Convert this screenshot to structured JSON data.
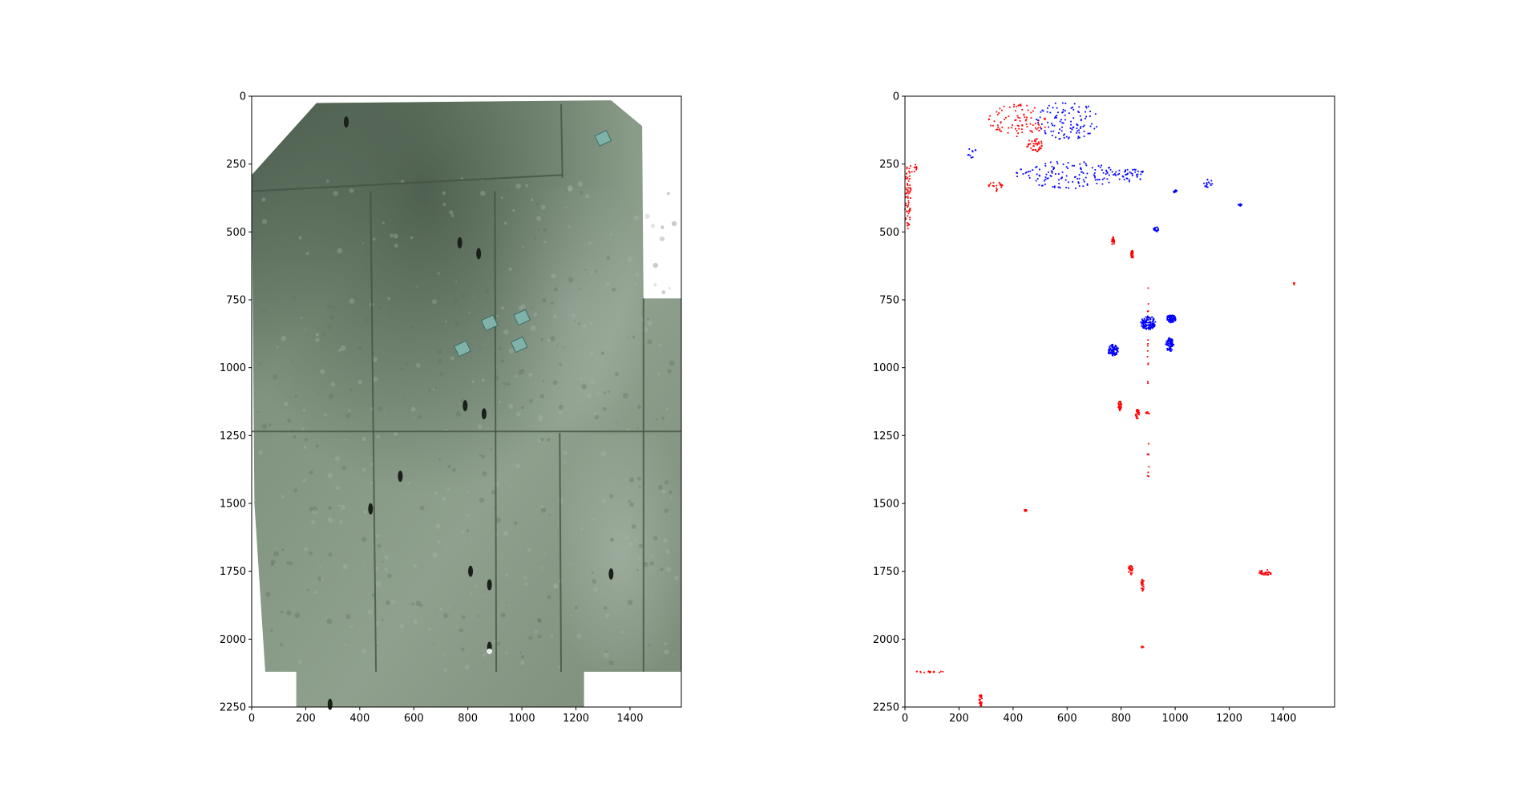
{
  "figure": {
    "background": "#ffffff",
    "panel_count": 2
  },
  "chart_data": [
    {
      "type": "heatmap",
      "content": "photograph-of-concrete-wall-panels",
      "title": "",
      "xlabel": "",
      "ylabel": "",
      "xlim": [
        0,
        1590
      ],
      "ylim": [
        2250,
        0
      ],
      "x_ticks": [
        "0",
        "200",
        "400",
        "600",
        "800",
        "1000",
        "1200",
        "1400"
      ],
      "x_tick_values": [
        0,
        200,
        400,
        600,
        800,
        1000,
        1200,
        1400
      ],
      "y_ticks": [
        "0",
        "250",
        "500",
        "750",
        "1000",
        "1250",
        "1500",
        "1750",
        "2000",
        "2250"
      ],
      "y_tick_values": [
        0,
        250,
        500,
        750,
        1000,
        1250,
        1500,
        1750,
        2000,
        2250
      ],
      "grid": false,
      "image_outline": [
        [
          240,
          25
        ],
        [
          1330,
          15
        ],
        [
          1445,
          110
        ],
        [
          1450,
          745
        ],
        [
          1590,
          745
        ],
        [
          1590,
          2120
        ],
        [
          1230,
          2120
        ],
        [
          1230,
          2250
        ],
        [
          165,
          2250
        ],
        [
          165,
          2120
        ],
        [
          50,
          2120
        ],
        [
          10,
          1500
        ],
        [
          0,
          290
        ]
      ],
      "image_colors": {
        "base": "#8a9c89",
        "dark": "#4d5e4f",
        "light": "#a7b6a7"
      },
      "panel_joints": {
        "horizontal": [
          [
            0,
            1235,
            1590,
            1235
          ],
          [
            0,
            350,
            1150,
            290
          ]
        ],
        "vertical": [
          [
            440,
            350,
            460,
            2120
          ],
          [
            900,
            350,
            905,
            2120
          ],
          [
            1140,
            1240,
            1145,
            2120
          ],
          [
            1145,
            30,
            1150,
            300
          ],
          [
            1450,
            745,
            1450,
            2120
          ]
        ]
      },
      "dark_spots": [
        [
          770,
          540
        ],
        [
          840,
          580
        ],
        [
          790,
          1140
        ],
        [
          860,
          1170
        ],
        [
          810,
          1750
        ],
        [
          880,
          1800
        ],
        [
          1330,
          1760
        ],
        [
          440,
          1520
        ],
        [
          290,
          2240
        ],
        [
          880,
          2030
        ],
        [
          550,
          1400
        ],
        [
          350,
          95
        ]
      ],
      "tags": [
        [
          880,
          835
        ],
        [
          1000,
          815
        ],
        [
          990,
          915
        ],
        [
          780,
          930
        ],
        [
          1300,
          155
        ]
      ]
    },
    {
      "type": "scatter",
      "content": "defect-classification-map",
      "title": "",
      "xlabel": "",
      "ylabel": "",
      "xlim": [
        0,
        1590
      ],
      "ylim": [
        2250,
        0
      ],
      "x_ticks": [
        "0",
        "200",
        "400",
        "600",
        "800",
        "1000",
        "1200",
        "1400"
      ],
      "x_tick_values": [
        0,
        200,
        400,
        600,
        800,
        1000,
        1200,
        1400
      ],
      "y_ticks": [
        "0",
        "250",
        "500",
        "750",
        "1000",
        "1250",
        "1500",
        "1750",
        "2000",
        "2250"
      ],
      "y_tick_values": [
        0,
        250,
        500,
        750,
        1000,
        1250,
        1500,
        1750,
        2000,
        2250
      ],
      "grid": false,
      "series": [
        {
          "color": "#ff0000",
          "clusters": [
            {
              "x": 420,
              "y": 90,
              "rx": 110,
              "ry": 60,
              "n": 90
            },
            {
              "x": 480,
              "y": 180,
              "rx": 30,
              "ry": 25,
              "n": 40
            },
            {
              "x": 10,
              "y": 370,
              "rx": 12,
              "ry": 120,
              "n": 70
            },
            {
              "x": 340,
              "y": 330,
              "rx": 30,
              "ry": 20,
              "n": 20
            },
            {
              "x": 770,
              "y": 535,
              "rx": 5,
              "ry": 18,
              "n": 25
            },
            {
              "x": 840,
              "y": 585,
              "rx": 5,
              "ry": 18,
              "n": 25
            },
            {
              "x": 795,
              "y": 1140,
              "rx": 6,
              "ry": 20,
              "n": 30
            },
            {
              "x": 860,
              "y": 1170,
              "rx": 8,
              "ry": 18,
              "n": 30
            },
            {
              "x": 900,
              "y": 1165,
              "rx": 10,
              "ry": 5,
              "n": 10
            },
            {
              "x": 445,
              "y": 1525,
              "rx": 6,
              "ry": 4,
              "n": 10
            },
            {
              "x": 835,
              "y": 1745,
              "rx": 8,
              "ry": 18,
              "n": 28
            },
            {
              "x": 880,
              "y": 1800,
              "rx": 6,
              "ry": 22,
              "n": 28
            },
            {
              "x": 1335,
              "y": 1755,
              "rx": 25,
              "ry": 12,
              "n": 35
            },
            {
              "x": 280,
              "y": 2225,
              "rx": 6,
              "ry": 22,
              "n": 25
            },
            {
              "x": 100,
              "y": 2120,
              "rx": 60,
              "ry": 4,
              "n": 18
            },
            {
              "x": 880,
              "y": 2030,
              "rx": 5,
              "ry": 5,
              "n": 6
            },
            {
              "x": 900,
              "y": 900,
              "rx": 3,
              "ry": 200,
              "n": 15
            },
            {
              "x": 900,
              "y": 1350,
              "rx": 3,
              "ry": 100,
              "n": 8
            },
            {
              "x": 1440,
              "y": 690,
              "rx": 4,
              "ry": 4,
              "n": 4
            },
            {
              "x": 30,
              "y": 260,
              "rx": 15,
              "ry": 20,
              "n": 12
            }
          ]
        },
        {
          "color": "#0000ff",
          "clusters": [
            {
              "x": 600,
              "y": 90,
              "rx": 120,
              "ry": 70,
              "n": 110
            },
            {
              "x": 600,
              "y": 290,
              "rx": 190,
              "ry": 50,
              "n": 130
            },
            {
              "x": 830,
              "y": 290,
              "rx": 60,
              "ry": 25,
              "n": 45
            },
            {
              "x": 900,
              "y": 835,
              "rx": 28,
              "ry": 25,
              "n": 120
            },
            {
              "x": 985,
              "y": 820,
              "rx": 18,
              "ry": 14,
              "n": 90
            },
            {
              "x": 980,
              "y": 915,
              "rx": 15,
              "ry": 25,
              "n": 80
            },
            {
              "x": 770,
              "y": 935,
              "rx": 20,
              "ry": 22,
              "n": 85
            },
            {
              "x": 930,
              "y": 490,
              "rx": 10,
              "ry": 10,
              "n": 20
            },
            {
              "x": 1120,
              "y": 320,
              "rx": 18,
              "ry": 15,
              "n": 15
            },
            {
              "x": 1000,
              "y": 350,
              "rx": 8,
              "ry": 6,
              "n": 8
            },
            {
              "x": 1240,
              "y": 400,
              "rx": 8,
              "ry": 5,
              "n": 8
            },
            {
              "x": 250,
              "y": 210,
              "rx": 20,
              "ry": 20,
              "n": 10
            }
          ]
        }
      ]
    }
  ]
}
